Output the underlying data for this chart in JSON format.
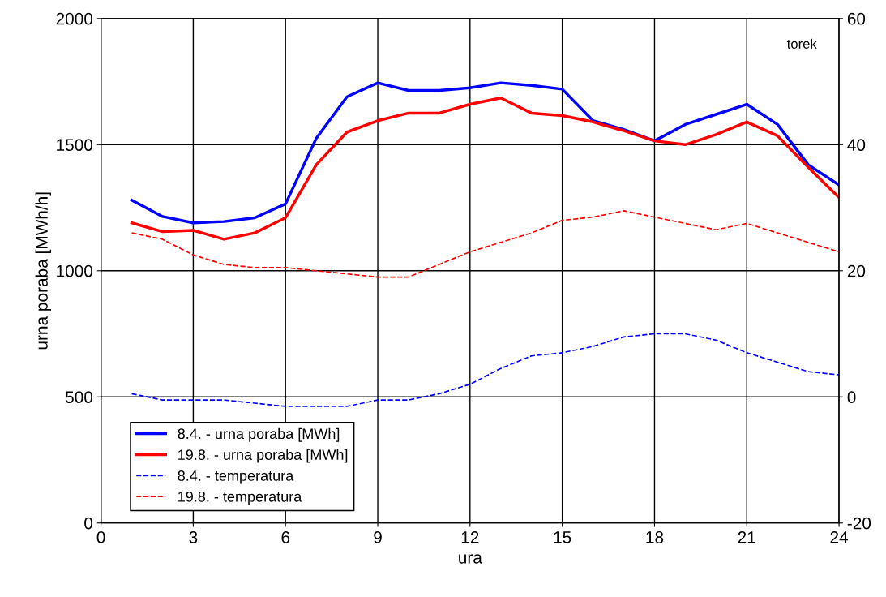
{
  "chart_data": {
    "type": "line",
    "xlabel": "ura",
    "ylabel": "urna poraba [MWh/h]",
    "x": [
      1,
      2,
      3,
      4,
      5,
      6,
      7,
      8,
      9,
      10,
      11,
      12,
      13,
      14,
      15,
      16,
      17,
      18,
      19,
      20,
      21,
      22,
      23,
      24
    ],
    "series": [
      {
        "name": "8.4. - urna poraba [MWh]",
        "color": "#0000ff",
        "line_style": "solid",
        "values": [
          1280,
          1215,
          1190,
          1195,
          1210,
          1265,
          1525,
          1690,
          1745,
          1715,
          1715,
          1725,
          1745,
          1735,
          1720,
          1595,
          1560,
          1515,
          1580,
          1620,
          1660,
          1580,
          1420,
          1340
        ]
      },
      {
        "name": "19.8. - urna poraba [MWh]",
        "color": "#ff0000",
        "line_style": "solid",
        "values": [
          1190,
          1155,
          1160,
          1125,
          1150,
          1210,
          1420,
          1550,
          1595,
          1625,
          1625,
          1660,
          1685,
          1625,
          1615,
          1590,
          1555,
          1515,
          1500,
          1540,
          1590,
          1535,
          1410,
          1290
        ]
      },
      {
        "name": "8.4. - temperatura",
        "color": "#0000ff",
        "line_style": "dashed",
        "axis": "y2",
        "values": [
          0.5,
          -0.5,
          -0.5,
          -0.5,
          -1,
          -1.5,
          -1.5,
          -1.5,
          -0.5,
          -0.5,
          0.5,
          2,
          4.5,
          6.5,
          7,
          8,
          9.5,
          10,
          10,
          9,
          7,
          5.5,
          4,
          3.5
        ]
      },
      {
        "name": "19.8. - temperatura",
        "color": "#ff0000",
        "line_style": "dashed",
        "axis": "y2",
        "values": [
          26,
          25,
          22.5,
          21,
          20.5,
          20.5,
          20,
          19.5,
          19,
          19,
          21,
          23,
          24.5,
          26,
          28,
          28.5,
          29.5,
          28.5,
          27.5,
          26.5,
          27.5,
          26,
          24.5,
          23
        ]
      }
    ],
    "xlim": [
      0,
      24
    ],
    "xticks": [
      0,
      3,
      6,
      9,
      12,
      15,
      18,
      21,
      24
    ],
    "ylim": [
      0,
      2000
    ],
    "yticks": [
      0,
      500,
      1000,
      1500,
      2000
    ],
    "y2lim": [
      -20,
      60
    ],
    "y2ticks": [
      -20,
      0,
      20,
      40,
      60
    ],
    "grid": true,
    "legend": "bottom left",
    "marker": "none",
    "annotations": [
      "torek"
    ]
  }
}
